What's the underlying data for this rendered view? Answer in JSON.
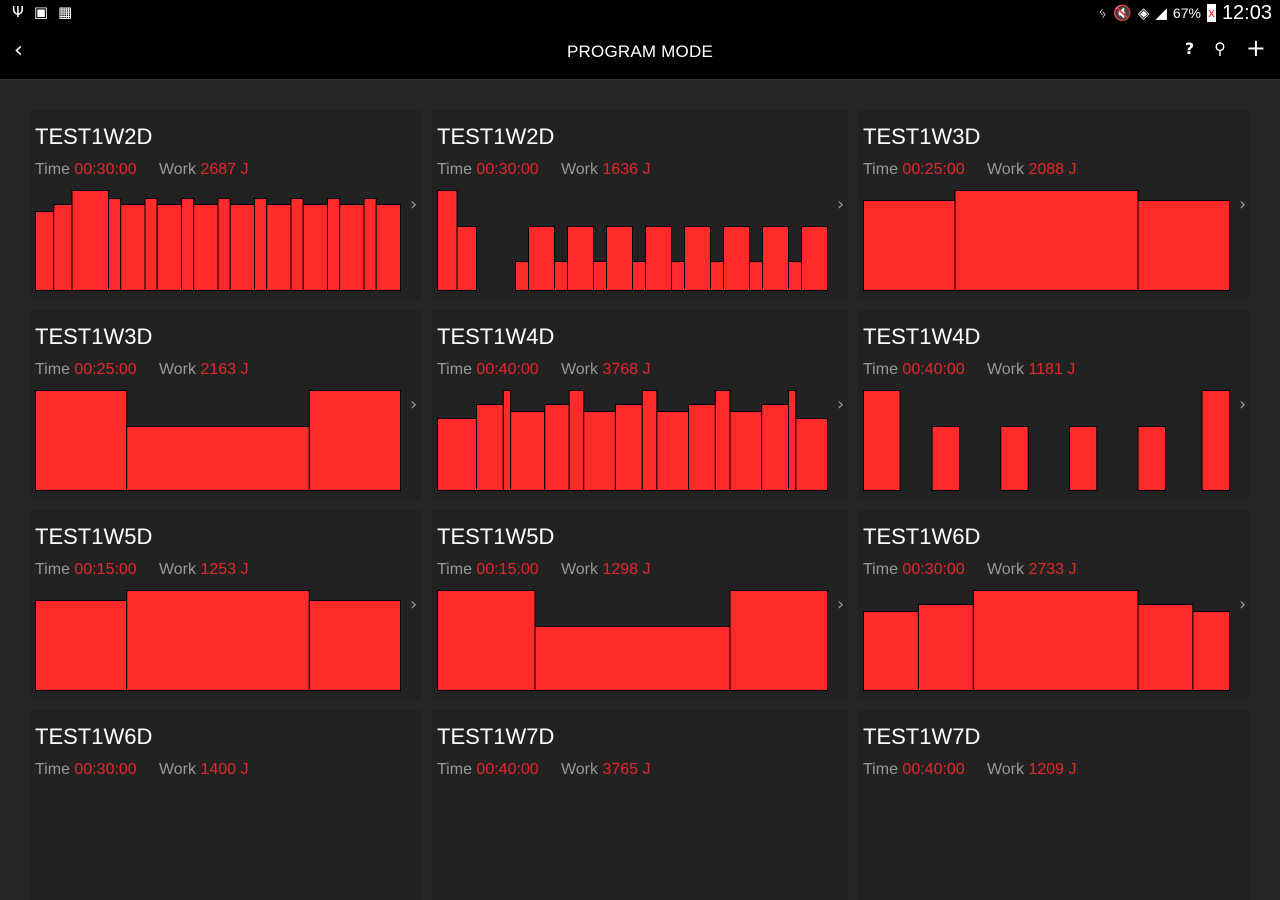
{
  "status_bar": {
    "left_icons": [
      "usb-icon",
      "cast-icon",
      "sim-off-icon"
    ],
    "right_icons": [
      "bluetooth-icon",
      "mute-icon",
      "wifi-icon",
      "signal-icon"
    ],
    "battery": "67%",
    "time": "12:03"
  },
  "app_bar": {
    "title": "PROGRAM MODE",
    "back_icon": "chevron-left-icon",
    "help_label": "?",
    "search_icon": "search-icon",
    "add_label": "+"
  },
  "labels": {
    "time": "Time",
    "work": "Work"
  },
  "colors": {
    "bar": "#ff2a2a",
    "accent": "#e8282a",
    "card": "#222222",
    "background": "#262626"
  },
  "programs": [
    {
      "name": "TEST1W2D",
      "time": "00:30:00",
      "work": "2687 J",
      "segments": [
        [
          90,
          79
        ],
        [
          90,
          86
        ],
        [
          180,
          100
        ],
        [
          60,
          92
        ],
        [
          120,
          86
        ],
        [
          60,
          92
        ],
        [
          120,
          86
        ],
        [
          60,
          92
        ],
        [
          120,
          86
        ],
        [
          60,
          92
        ],
        [
          120,
          86
        ],
        [
          60,
          92
        ],
        [
          120,
          86
        ],
        [
          60,
          92
        ],
        [
          120,
          86
        ],
        [
          60,
          92
        ],
        [
          120,
          86
        ],
        [
          60,
          92
        ],
        [
          120,
          86
        ]
      ]
    },
    {
      "name": "TEST1W2D",
      "time": "00:30:00",
      "work": "1636 J",
      "segments": [
        [
          90,
          100
        ],
        [
          90,
          64
        ],
        [
          180,
          0
        ],
        [
          60,
          29
        ],
        [
          120,
          64
        ],
        [
          60,
          29
        ],
        [
          120,
          64
        ],
        [
          60,
          29
        ],
        [
          120,
          64
        ],
        [
          60,
          29
        ],
        [
          120,
          64
        ],
        [
          60,
          29
        ],
        [
          120,
          64
        ],
        [
          60,
          29
        ],
        [
          120,
          64
        ],
        [
          60,
          29
        ],
        [
          120,
          64
        ],
        [
          60,
          29
        ],
        [
          120,
          64
        ]
      ]
    },
    {
      "name": "TEST1W3D",
      "time": "00:25:00",
      "work": "2088 J",
      "segments": [
        [
          375,
          90
        ],
        [
          750,
          100
        ],
        [
          375,
          90
        ]
      ]
    },
    {
      "name": "TEST1W3D",
      "time": "00:25:00",
      "work": "2163 J",
      "segments": [
        [
          375,
          100
        ],
        [
          750,
          64
        ],
        [
          375,
          100
        ]
      ]
    },
    {
      "name": "TEST1W4D",
      "time": "00:40:00",
      "work": "3768 J",
      "segments": [
        [
          240,
          72
        ],
        [
          165,
          86
        ],
        [
          45,
          100
        ],
        [
          210,
          79
        ],
        [
          150,
          86
        ],
        [
          90,
          100
        ],
        [
          195,
          79
        ],
        [
          165,
          86
        ],
        [
          90,
          100
        ],
        [
          195,
          79
        ],
        [
          165,
          86
        ],
        [
          90,
          100
        ],
        [
          195,
          79
        ],
        [
          165,
          86
        ],
        [
          45,
          100
        ],
        [
          195,
          72
        ]
      ]
    },
    {
      "name": "TEST1W4D",
      "time": "00:40:00",
      "work": "1181 J",
      "segments": [
        [
          240,
          100
        ],
        [
          210,
          0
        ],
        [
          180,
          64
        ],
        [
          270,
          0
        ],
        [
          180,
          64
        ],
        [
          270,
          0
        ],
        [
          180,
          64
        ],
        [
          270,
          0
        ],
        [
          180,
          64
        ],
        [
          240,
          0
        ],
        [
          180,
          100
        ]
      ]
    },
    {
      "name": "TEST1W5D",
      "time": "00:15:00",
      "work": "1253 J",
      "segments": [
        [
          225,
          90
        ],
        [
          450,
          100
        ],
        [
          225,
          90
        ]
      ]
    },
    {
      "name": "TEST1W5D",
      "time": "00:15:00",
      "work": "1298 J",
      "segments": [
        [
          225,
          100
        ],
        [
          450,
          64
        ],
        [
          225,
          100
        ]
      ]
    },
    {
      "name": "TEST1W6D",
      "time": "00:30:00",
      "work": "2733 J",
      "segments": [
        [
          270,
          79
        ],
        [
          270,
          86
        ],
        [
          810,
          100
        ],
        [
          270,
          86
        ],
        [
          180,
          79
        ]
      ]
    },
    {
      "name": "TEST1W6D",
      "time": "00:30:00",
      "work": "1400 J"
    },
    {
      "name": "TEST1W7D",
      "time": "00:40:00",
      "work": "3765 J"
    },
    {
      "name": "TEST1W7D",
      "time": "00:40:00",
      "work": "1209 J"
    }
  ]
}
